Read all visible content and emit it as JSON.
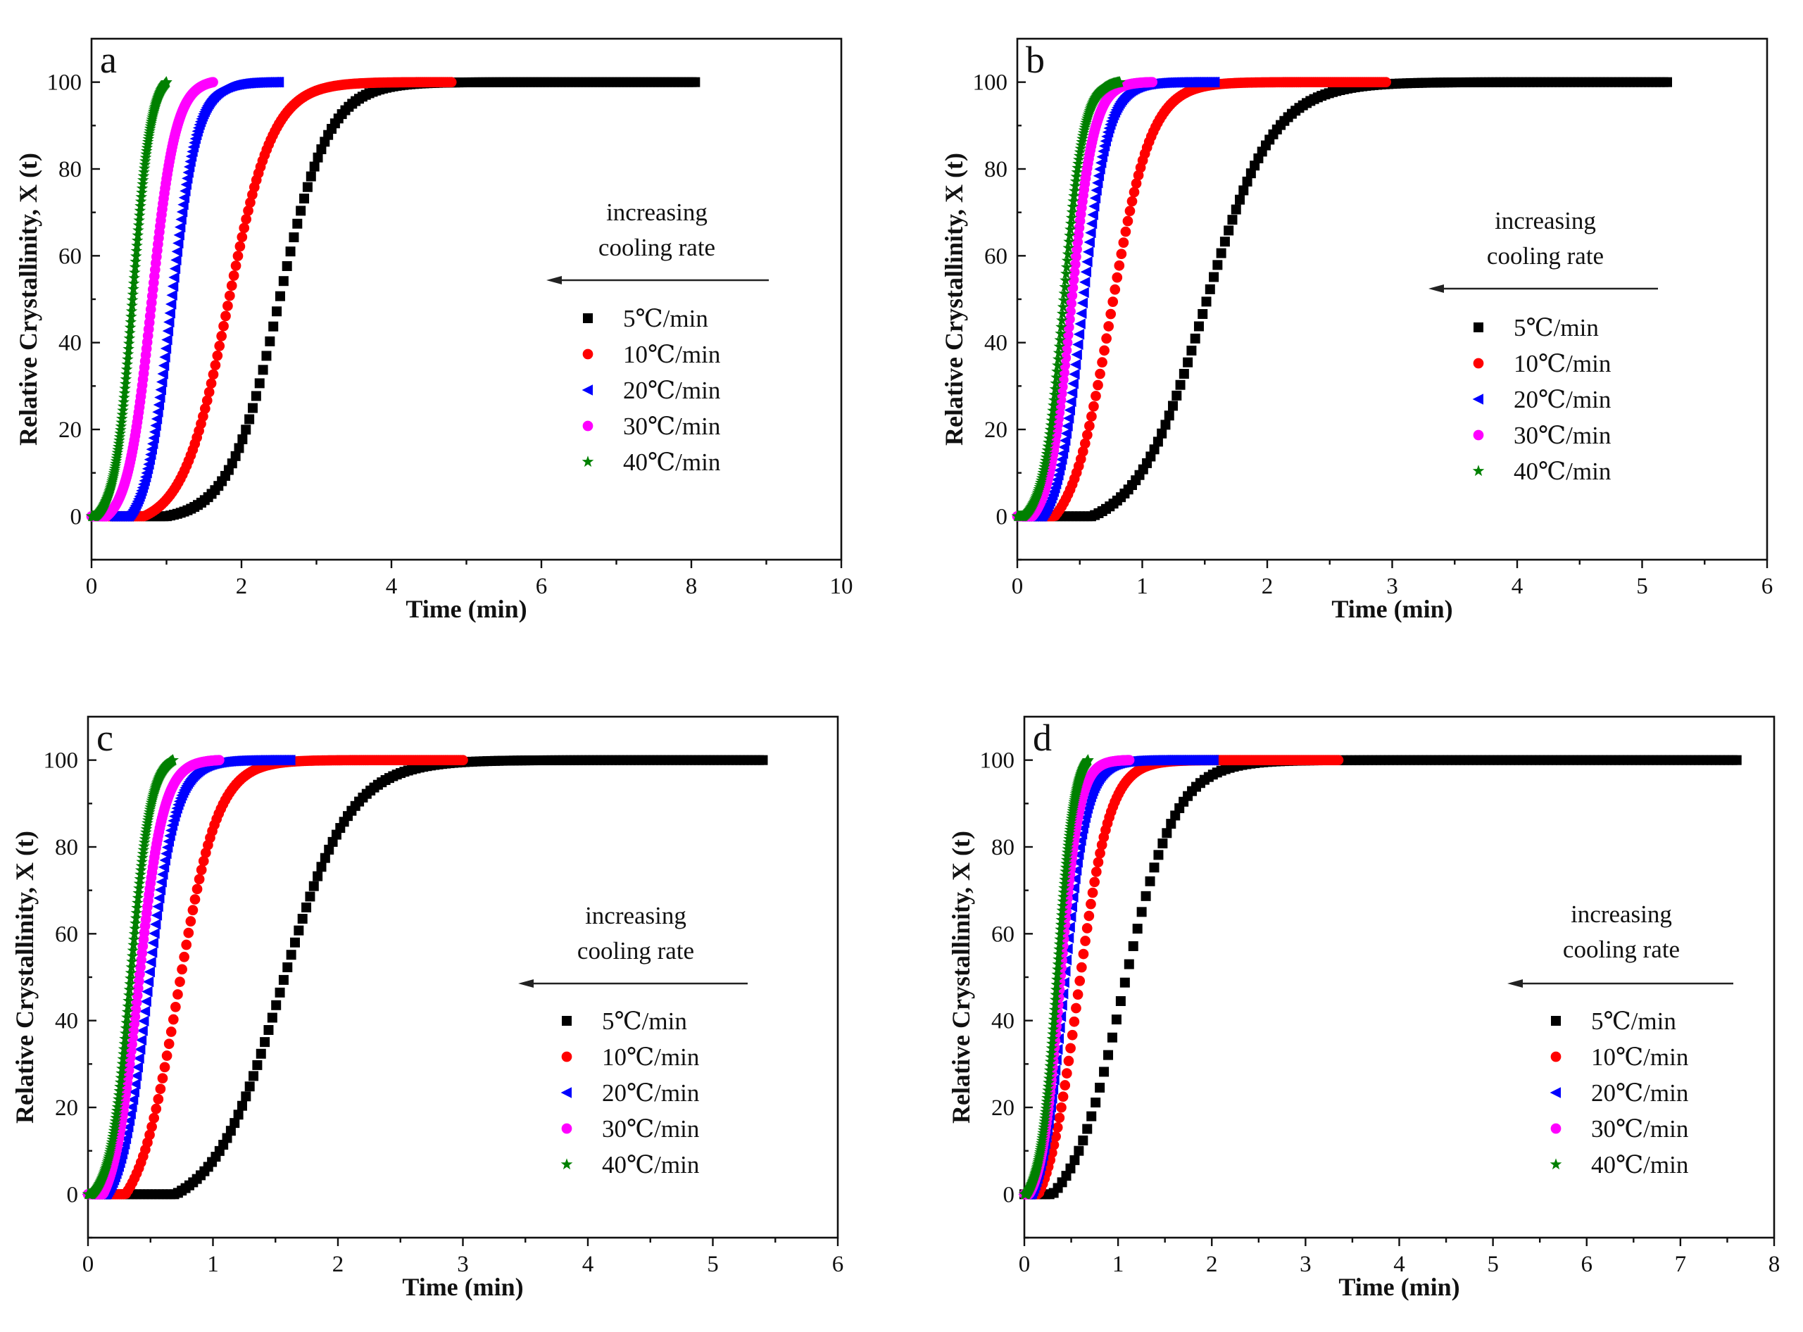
{
  "figure": {
    "xlabel": "Time (min)",
    "ylabel": "Relative Crystallinity, X (t)",
    "annotation": [
      "increasing",
      "cooling rate"
    ]
  },
  "chart_data": [
    {
      "type": "scatter",
      "panel": "a",
      "xlim": [
        0,
        10
      ],
      "ylim": [
        -10,
        110
      ],
      "xticks": [
        0,
        2,
        4,
        6,
        8,
        10
      ],
      "yticks": [
        0,
        20,
        40,
        60,
        80,
        100
      ],
      "legend_position": "right-middle",
      "series": [
        {
          "name": "5℃/min",
          "marker": "square",
          "color": "#000000",
          "start": 1.0,
          "half_time": 2.5,
          "end": 8.05,
          "spread": 0.33
        },
        {
          "name": "10℃/min",
          "marker": "circle",
          "color": "#ff0000",
          "start": 0.7,
          "half_time": 1.82,
          "end": 4.8,
          "spread": 0.3
        },
        {
          "name": "20℃/min",
          "marker": "triangle-left",
          "color": "#0000ff",
          "start": 0.5,
          "half_time": 1.06,
          "end": 2.5,
          "spread": 0.17
        },
        {
          "name": "30℃/min",
          "marker": "circle",
          "color": "#ff00ff",
          "start": 0.2,
          "half_time": 0.8,
          "end": 1.62,
          "spread": 0.16
        },
        {
          "name": "40℃/min",
          "marker": "star",
          "color": "#008000",
          "start": 0.05,
          "half_time": 0.55,
          "end": 1.0,
          "spread": 0.12
        }
      ]
    },
    {
      "type": "scatter",
      "panel": "b",
      "xlim": [
        0,
        6
      ],
      "ylim": [
        -10,
        110
      ],
      "xticks": [
        0,
        1,
        2,
        3,
        4,
        5,
        6
      ],
      "yticks": [
        0,
        20,
        40,
        60,
        80,
        100
      ],
      "legend_position": "right-middle",
      "series": [
        {
          "name": "5℃/min",
          "marker": "square",
          "color": "#000000",
          "start": 0.6,
          "half_time": 1.5,
          "end": 5.2,
          "spread": 0.27
        },
        {
          "name": "10℃/min",
          "marker": "circle",
          "color": "#ff0000",
          "start": 0.3,
          "half_time": 0.75,
          "end": 2.95,
          "spread": 0.16
        },
        {
          "name": "20℃/min",
          "marker": "triangle-left",
          "color": "#0000ff",
          "start": 0.2,
          "half_time": 0.52,
          "end": 1.58,
          "spread": 0.1
        },
        {
          "name": "30℃/min",
          "marker": "circle",
          "color": "#ff00ff",
          "start": 0.12,
          "half_time": 0.43,
          "end": 1.08,
          "spread": 0.09
        },
        {
          "name": "40℃/min",
          "marker": "star",
          "color": "#008000",
          "start": 0.05,
          "half_time": 0.37,
          "end": 0.82,
          "spread": 0.08
        }
      ]
    },
    {
      "type": "scatter",
      "panel": "c",
      "xlim": [
        0,
        6
      ],
      "ylim": [
        -10,
        110
      ],
      "xticks": [
        0,
        1,
        2,
        3,
        4,
        5,
        6
      ],
      "yticks": [
        0,
        20,
        40,
        60,
        80,
        100
      ],
      "legend_position": "right-middle",
      "series": [
        {
          "name": "5℃/min",
          "marker": "square",
          "color": "#000000",
          "start": 0.7,
          "half_time": 1.55,
          "end": 5.4,
          "spread": 0.27
        },
        {
          "name": "10℃/min",
          "marker": "circle",
          "color": "#ff0000",
          "start": 0.3,
          "half_time": 0.72,
          "end": 3.0,
          "spread": 0.16
        },
        {
          "name": "20℃/min",
          "marker": "triangle-left",
          "color": "#0000ff",
          "start": 0.15,
          "half_time": 0.48,
          "end": 1.62,
          "spread": 0.11
        },
        {
          "name": "30℃/min",
          "marker": "circle",
          "color": "#ff00ff",
          "start": 0.12,
          "half_time": 0.4,
          "end": 1.05,
          "spread": 0.1
        },
        {
          "name": "40℃/min",
          "marker": "star",
          "color": "#008000",
          "start": 0.03,
          "half_time": 0.34,
          "end": 0.68,
          "spread": 0.08
        }
      ]
    },
    {
      "type": "scatter",
      "panel": "d",
      "xlim": [
        0,
        8
      ],
      "ylim": [
        -10,
        110
      ],
      "xticks": [
        0,
        1,
        2,
        3,
        4,
        5,
        6,
        7,
        8
      ],
      "yticks": [
        0,
        20,
        40,
        60,
        80,
        100
      ],
      "legend_position": "right-middle",
      "series": [
        {
          "name": "5℃/min",
          "marker": "square",
          "color": "#000000",
          "start": 0.3,
          "half_time": 1.05,
          "end": 7.6,
          "spread": 0.28
        },
        {
          "name": "10℃/min",
          "marker": "circle",
          "color": "#ff0000",
          "start": 0.15,
          "half_time": 0.57,
          "end": 3.35,
          "spread": 0.17
        },
        {
          "name": "20℃/min",
          "marker": "triangle-left",
          "color": "#0000ff",
          "start": 0.08,
          "half_time": 0.42,
          "end": 2.02,
          "spread": 0.12
        },
        {
          "name": "30℃/min",
          "marker": "circle",
          "color": "#ff00ff",
          "start": 0.05,
          "half_time": 0.38,
          "end": 1.12,
          "spread": 0.1
        },
        {
          "name": "40℃/min",
          "marker": "star",
          "color": "#008000",
          "start": 0.02,
          "half_time": 0.35,
          "end": 0.68,
          "spread": 0.09
        }
      ]
    }
  ]
}
